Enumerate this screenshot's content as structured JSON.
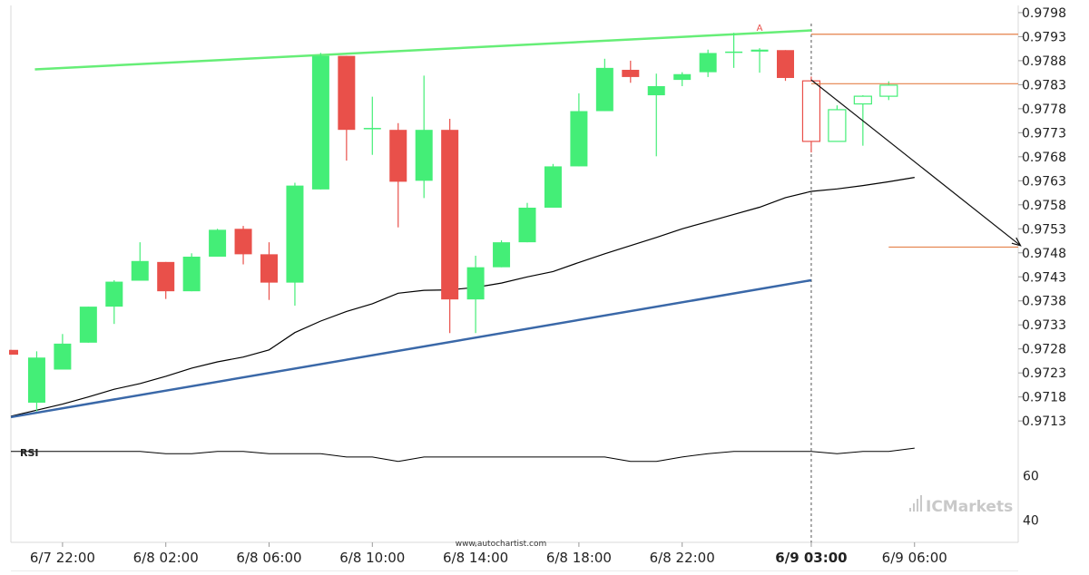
{
  "chart_data": {
    "type": "candlestick",
    "price_axis": {
      "range": [
        0.97085,
        0.97995
      ],
      "ticks": [
        "0.9798",
        "0.9793",
        "0.9788",
        "0.9783",
        "0.9778",
        "0.9773",
        "0.9768",
        "0.9763",
        "0.9758",
        "0.9753",
        "0.9748",
        "0.9743",
        "0.9738",
        "0.9733",
        "0.9728",
        "0.9723",
        "0.9718",
        "0.9713"
      ]
    },
    "time_axis": {
      "ticks": [
        {
          "label": "6/7 22:00",
          "bar": 2
        },
        {
          "label": "6/8 02:00",
          "bar": 6
        },
        {
          "label": "6/8 06:00",
          "bar": 10
        },
        {
          "label": "6/8 10:00",
          "bar": 14
        },
        {
          "label": "6/8 14:00",
          "bar": 18
        },
        {
          "label": "6/8 18:00",
          "bar": 22
        },
        {
          "label": "6/8 22:00",
          "bar": 26
        },
        {
          "label": "6/9 03:00",
          "bar": 31,
          "bold": true
        },
        {
          "label": "6/9 06:00",
          "bar": 35
        }
      ]
    },
    "candles": [
      {
        "o": 0.97278,
        "h": 0.97278,
        "l": 0.97268,
        "c": 0.97268
      },
      {
        "o": 0.97168,
        "h": 0.97275,
        "l": 0.9715,
        "c": 0.97262
      },
      {
        "o": 0.97237,
        "h": 0.97311,
        "l": 0.97237,
        "c": 0.97291
      },
      {
        "o": 0.97293,
        "h": 0.97368,
        "l": 0.97293,
        "c": 0.97368
      },
      {
        "o": 0.97368,
        "h": 0.97423,
        "l": 0.97332,
        "c": 0.9742
      },
      {
        "o": 0.97422,
        "h": 0.97502,
        "l": 0.97422,
        "c": 0.97463
      },
      {
        "o": 0.97461,
        "h": 0.97461,
        "l": 0.97384,
        "c": 0.974
      },
      {
        "o": 0.974,
        "h": 0.97479,
        "l": 0.974,
        "c": 0.97472
      },
      {
        "o": 0.97472,
        "h": 0.9753,
        "l": 0.97472,
        "c": 0.97528
      },
      {
        "o": 0.9753,
        "h": 0.97536,
        "l": 0.97456,
        "c": 0.97477
      },
      {
        "o": 0.97477,
        "h": 0.97502,
        "l": 0.97382,
        "c": 0.97418
      },
      {
        "o": 0.97418,
        "h": 0.97626,
        "l": 0.9737,
        "c": 0.9762
      },
      {
        "o": 0.97612,
        "h": 0.97896,
        "l": 0.97612,
        "c": 0.9789
      },
      {
        "o": 0.9789,
        "h": 0.9789,
        "l": 0.97672,
        "c": 0.97736
      },
      {
        "o": 0.9774,
        "h": 0.97805,
        "l": 0.97684,
        "c": 0.9774
      },
      {
        "o": 0.97736,
        "h": 0.9775,
        "l": 0.97533,
        "c": 0.97628
      },
      {
        "o": 0.9763,
        "h": 0.97849,
        "l": 0.97594,
        "c": 0.97736
      },
      {
        "o": 0.97736,
        "h": 0.97759,
        "l": 0.97313,
        "c": 0.97383
      },
      {
        "o": 0.97383,
        "h": 0.97474,
        "l": 0.97313,
        "c": 0.9745
      },
      {
        "o": 0.9745,
        "h": 0.97506,
        "l": 0.9745,
        "c": 0.97502
      },
      {
        "o": 0.97502,
        "h": 0.97584,
        "l": 0.97502,
        "c": 0.97574
      },
      {
        "o": 0.97574,
        "h": 0.97665,
        "l": 0.97574,
        "c": 0.9766
      },
      {
        "o": 0.9766,
        "h": 0.97812,
        "l": 0.9766,
        "c": 0.97775
      },
      {
        "o": 0.97775,
        "h": 0.97884,
        "l": 0.97775,
        "c": 0.97865
      },
      {
        "o": 0.97861,
        "h": 0.9788,
        "l": 0.97834,
        "c": 0.97846
      },
      {
        "o": 0.97808,
        "h": 0.97853,
        "l": 0.97681,
        "c": 0.97827
      },
      {
        "o": 0.9784,
        "h": 0.97856,
        "l": 0.97827,
        "c": 0.97852
      },
      {
        "o": 0.97856,
        "h": 0.97903,
        "l": 0.97846,
        "c": 0.97896
      },
      {
        "o": 0.97899,
        "h": 0.97938,
        "l": 0.97865,
        "c": 0.97899
      },
      {
        "o": 0.97899,
        "h": 0.97906,
        "l": 0.97855,
        "c": 0.97903
      },
      {
        "o": 0.97902,
        "h": 0.97902,
        "l": 0.97838,
        "c": 0.97844
      },
      {
        "o": 0.97838,
        "h": 0.97847,
        "l": 0.97689,
        "c": 0.97712,
        "outline": true
      },
      {
        "o": 0.97712,
        "h": 0.97787,
        "l": 0.97712,
        "c": 0.97778,
        "outline": true
      },
      {
        "o": 0.9779,
        "h": 0.97808,
        "l": 0.97703,
        "c": 0.97806,
        "outline": true
      },
      {
        "o": 0.97806,
        "h": 0.97837,
        "l": 0.97798,
        "c": 0.97829,
        "outline": true
      }
    ],
    "moving_average": [
      [
        0,
        0.9714
      ],
      [
        2,
        0.97165
      ],
      [
        3,
        0.9718
      ],
      [
        4,
        0.97196
      ],
      [
        5,
        0.97208
      ],
      [
        6,
        0.97223
      ],
      [
        7,
        0.9724
      ],
      [
        8,
        0.97253
      ],
      [
        9,
        0.97263
      ],
      [
        10,
        0.97278
      ],
      [
        11,
        0.97314
      ],
      [
        12,
        0.97338
      ],
      [
        13,
        0.97358
      ],
      [
        14,
        0.97374
      ],
      [
        15,
        0.97396
      ],
      [
        16,
        0.97402
      ],
      [
        17,
        0.97403
      ],
      [
        18,
        0.97408
      ],
      [
        19,
        0.97417
      ],
      [
        20,
        0.9743
      ],
      [
        21,
        0.97441
      ],
      [
        22,
        0.9746
      ],
      [
        23,
        0.97478
      ],
      [
        24,
        0.97495
      ],
      [
        25,
        0.97512
      ],
      [
        26,
        0.9753
      ],
      [
        27,
        0.97545
      ],
      [
        28,
        0.9756
      ],
      [
        29,
        0.97575
      ],
      [
        30,
        0.97595
      ],
      [
        31,
        0.97608
      ],
      [
        32,
        0.97613
      ],
      [
        33,
        0.9762
      ],
      [
        34,
        0.97628
      ],
      [
        35,
        0.97637
      ]
    ],
    "resistance_line": {
      "from": [
        1,
        0.97862
      ],
      "to": [
        31,
        0.97943
      ],
      "color": "#66ee77"
    },
    "support_line": {
      "from": [
        0,
        0.97138
      ],
      "to": [
        31,
        0.97423
      ],
      "color": "#3a68a8"
    },
    "horizontal_levels": [
      {
        "value": 0.97935,
        "from_bar": 31,
        "color": "#e4814a"
      },
      {
        "value": 0.97832,
        "from_bar": 31,
        "color": "#e4814a"
      },
      {
        "value": 0.97492,
        "from_bar": 34,
        "color": "#e4814a"
      }
    ],
    "forecast_arrow": {
      "from": [
        31,
        0.9784
      ],
      "to": [
        39,
        0.97495
      ]
    },
    "marker": {
      "label": "A",
      "bar": 29,
      "value": 0.9795
    },
    "separator_bar": 31,
    "rsi": {
      "label": "RSI",
      "range": [
        30,
        75
      ],
      "ticks": [
        "60",
        "40"
      ],
      "values": [
        71,
        71,
        71,
        71,
        71,
        71,
        70,
        70,
        71,
        71,
        70,
        70,
        70,
        68.5,
        68.5,
        66.5,
        68.5,
        68.5,
        68.5,
        68.5,
        68.5,
        68.5,
        68.5,
        68.5,
        66.5,
        66.5,
        68.5,
        70,
        71,
        71,
        71,
        71,
        70,
        71,
        71,
        72.5
      ]
    },
    "colors": {
      "bull": "#44ee77",
      "bear": "#e9504a",
      "axis": "#d8d8d8",
      "text": "#222222",
      "line": "#000000"
    }
  },
  "watermark": {
    "url": "www.autochartist.com",
    "logo_text": "ICMarkets"
  }
}
